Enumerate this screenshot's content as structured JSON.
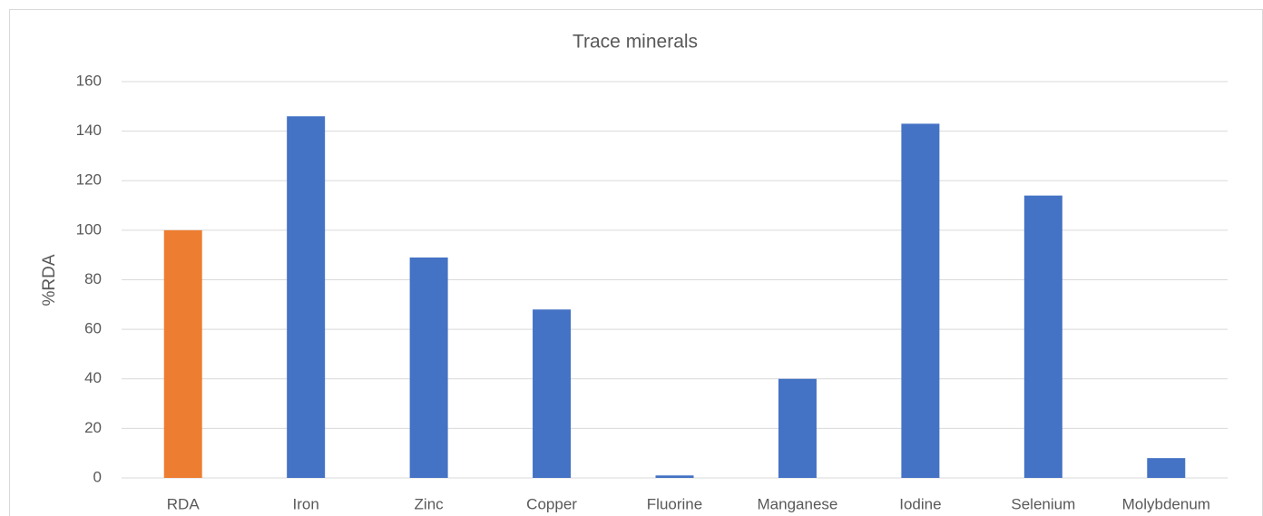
{
  "chart_data": {
    "type": "bar",
    "title": "Trace minerals",
    "y_label": "%RDA",
    "categories": [
      "RDA",
      "Iron",
      "Zinc",
      "Copper",
      "Fluorine",
      "Manganese",
      "Iodine",
      "Selenium",
      "Molybdenum"
    ],
    "values": [
      100,
      146,
      89,
      68,
      1,
      40,
      143,
      114,
      8
    ],
    "colors": [
      "#ed7d31",
      "#4472c4",
      "#4472c4",
      "#4472c4",
      "#4472c4",
      "#4472c4",
      "#4472c4",
      "#4472c4",
      "#4472c4"
    ],
    "ylim": [
      0,
      160
    ],
    "yticks": [
      0,
      20,
      40,
      60,
      80,
      100,
      120,
      140,
      160
    ],
    "grid": true
  }
}
